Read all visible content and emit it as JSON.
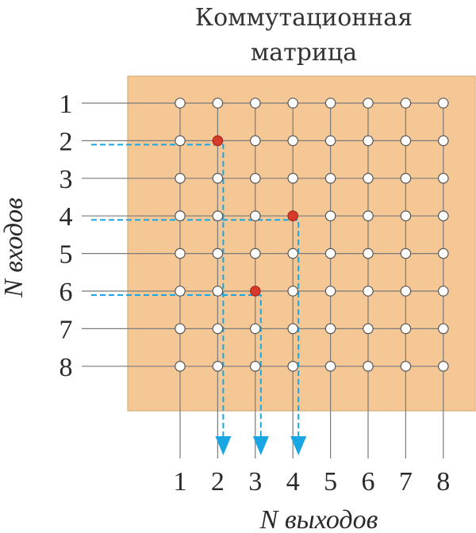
{
  "title_line1": "Коммутационная",
  "title_line2": "матрица",
  "input_axis_label": "N входов",
  "output_axis_label": "N выходов",
  "input_labels": [
    "1",
    "2",
    "3",
    "4",
    "5",
    "6",
    "7",
    "8"
  ],
  "output_labels": [
    "1",
    "2",
    "3",
    "4",
    "5",
    "6",
    "7",
    "8"
  ],
  "active_connections": [
    {
      "input": 2,
      "output": 2
    },
    {
      "input": 4,
      "output": 4
    },
    {
      "input": 6,
      "output": 3
    }
  ],
  "colors": {
    "panel": "#f4c795",
    "panel_border": "#d2a46f",
    "grid_line": "#7a7a7a",
    "node_fill": "#ffffff",
    "node_stroke": "#555555",
    "active_node": "#d63a2a",
    "path": "#1aa6e2"
  }
}
